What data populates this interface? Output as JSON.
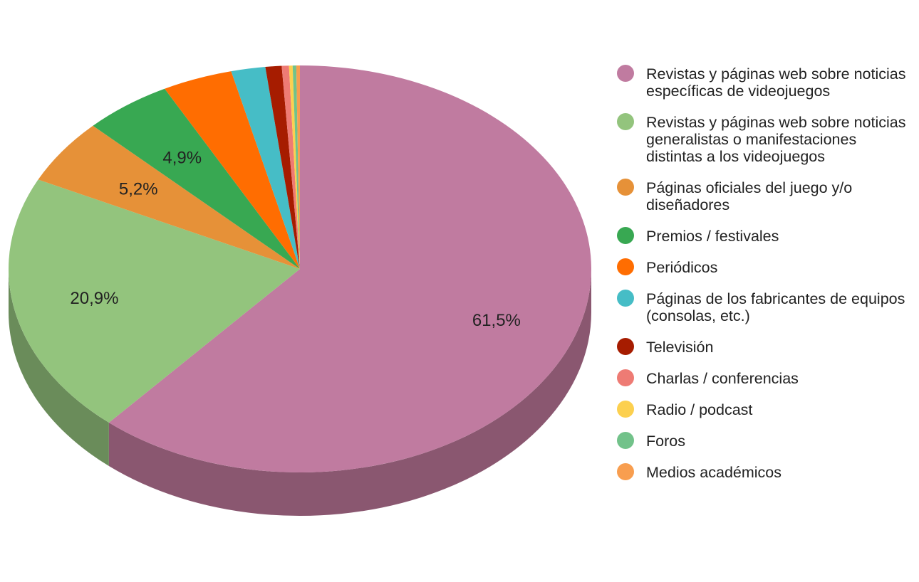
{
  "chart_data": {
    "type": "pie",
    "style": "3d",
    "legend_position": "right",
    "series": [
      {
        "name": "Revistas y páginas web sobre noticias específicas de videojuegos",
        "value": 61.5,
        "label": "61,5%",
        "color": "#c07ba0",
        "side_color": "#8a5770"
      },
      {
        "name": "Revistas y páginas web sobre noticias generalistas o manifestaciones distintas a los videojuegos",
        "value": 20.9,
        "label": "20,9%",
        "color": "#93c47d",
        "side_color": "#6a8c5a"
      },
      {
        "name": "Páginas oficiales del juego y/o diseñadores",
        "value": 5.2,
        "label": "5,2%",
        "color": "#e69138",
        "side_color": "#a86a29"
      },
      {
        "name": "Premios / festivales",
        "value": 4.9,
        "label": "4,9%",
        "color": "#38a852",
        "side_color": "#287a3b"
      },
      {
        "name": "Periódicos",
        "value": 3.9,
        "label": "",
        "color": "#ff6d01",
        "side_color": "#b94f01"
      },
      {
        "name": "Páginas de los fabricantes de equipos (consolas, etc.)",
        "value": 1.9,
        "label": "",
        "color": "#46bdc6",
        "side_color": "#338a90"
      },
      {
        "name": "Televisión",
        "value": 0.9,
        "label": "",
        "color": "#a61c00",
        "side_color": "#791400"
      },
      {
        "name": "Charlas / conferencias",
        "value": 0.4,
        "label": "",
        "color": "#ee7b74",
        "side_color": "#ad5954"
      },
      {
        "name": "Radio / podcast",
        "value": 0.2,
        "label": "",
        "color": "#fcd04f",
        "side_color": "#b8973a"
      },
      {
        "name": "Foros",
        "value": 0.2,
        "label": "",
        "color": "#72c28a",
        "side_color": "#538d65"
      },
      {
        "name": "Medios académicos",
        "value": 0.2,
        "label": "",
        "color": "#f89e4f",
        "side_color": "#b5733a"
      }
    ]
  }
}
